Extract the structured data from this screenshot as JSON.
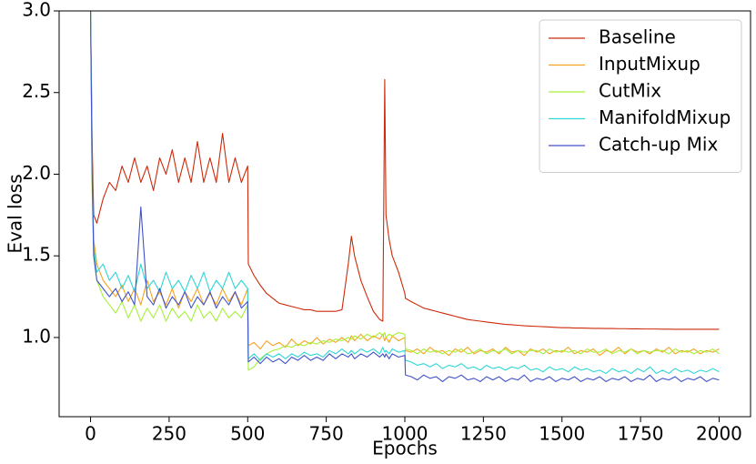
{
  "chart_data": {
    "type": "line",
    "x_label": "Epochs",
    "y_label": "Eval loss",
    "xlim": [
      -100,
      2100
    ],
    "ylim": [
      0.515,
      3.0
    ],
    "xticks": [
      0,
      250,
      500,
      750,
      1000,
      1250,
      1500,
      1750,
      2000
    ],
    "yticks": [
      {
        "value": 1,
        "label": "1.0"
      },
      1.5,
      {
        "value": 2,
        "label": "2.0"
      },
      2.5,
      {
        "value": 3,
        "label": "3.0"
      }
    ],
    "legend": "upper right",
    "x": [
      0,
      5,
      10,
      20,
      40,
      60,
      80,
      100,
      120,
      140,
      160,
      180,
      200,
      220,
      240,
      260,
      280,
      300,
      320,
      340,
      360,
      380,
      400,
      420,
      440,
      460,
      480,
      500,
      502,
      520,
      540,
      560,
      580,
      600,
      620,
      640,
      660,
      680,
      700,
      720,
      740,
      760,
      780,
      800,
      820,
      830,
      840,
      860,
      880,
      900,
      920,
      930,
      936,
      940,
      950,
      960,
      980,
      1000,
      1002,
      1020,
      1040,
      1060,
      1080,
      1100,
      1120,
      1140,
      1160,
      1180,
      1200,
      1220,
      1240,
      1260,
      1280,
      1300,
      1320,
      1340,
      1360,
      1380,
      1400,
      1420,
      1440,
      1460,
      1480,
      1500,
      1520,
      1540,
      1560,
      1580,
      1600,
      1620,
      1640,
      1660,
      1680,
      1700,
      1720,
      1740,
      1760,
      1780,
      1800,
      1820,
      1840,
      1860,
      1880,
      1900,
      1920,
      1940,
      1960,
      1980,
      2000
    ],
    "series": [
      {
        "name": "Baseline",
        "color": "#cc2a0a",
        "values": [
          3.0,
          2.2,
          1.75,
          1.7,
          1.85,
          1.95,
          1.9,
          2.05,
          1.95,
          2.1,
          1.95,
          2.05,
          1.9,
          2.1,
          2.0,
          2.15,
          1.95,
          2.1,
          1.95,
          2.2,
          1.95,
          2.1,
          1.95,
          2.25,
          1.95,
          2.1,
          1.95,
          2.05,
          1.45,
          1.38,
          1.32,
          1.27,
          1.24,
          1.21,
          1.2,
          1.19,
          1.18,
          1.17,
          1.17,
          1.16,
          1.16,
          1.16,
          1.16,
          1.17,
          1.45,
          1.62,
          1.5,
          1.35,
          1.25,
          1.16,
          1.11,
          1.1,
          2.58,
          1.75,
          1.6,
          1.5,
          1.4,
          1.27,
          1.24,
          1.22,
          1.2,
          1.18,
          1.17,
          1.16,
          1.15,
          1.14,
          1.13,
          1.12,
          1.11,
          1.105,
          1.1,
          1.095,
          1.09,
          1.085,
          1.08,
          1.078,
          1.075,
          1.072,
          1.07,
          1.068,
          1.066,
          1.064,
          1.062,
          1.06,
          1.06,
          1.058,
          1.058,
          1.057,
          1.056,
          1.056,
          1.055,
          1.055,
          1.054,
          1.054,
          1.053,
          1.053,
          1.052,
          1.052,
          1.052,
          1.051,
          1.051,
          1.05,
          1.05,
          1.05,
          1.05,
          1.05,
          1.05,
          1.05,
          1.05
        ]
      },
      {
        "name": "InputMixup",
        "color": "#f5a31f",
        "values": [
          3.0,
          2.0,
          1.6,
          1.45,
          1.35,
          1.3,
          1.25,
          1.32,
          1.22,
          1.3,
          1.2,
          1.35,
          1.22,
          1.28,
          1.2,
          1.3,
          1.18,
          1.28,
          1.22,
          1.3,
          1.2,
          1.27,
          1.2,
          1.3,
          1.22,
          1.28,
          1.2,
          1.3,
          0.95,
          0.97,
          0.93,
          0.98,
          0.95,
          0.97,
          0.94,
          0.99,
          0.95,
          0.98,
          0.96,
          1.0,
          0.96,
          0.99,
          0.97,
          1.0,
          0.97,
          1.01,
          0.98,
          1.02,
          0.98,
          1.01,
          0.99,
          1.02,
          0.98,
          1.0,
          0.97,
          1.01,
          0.98,
          1.0,
          0.92,
          0.91,
          0.93,
          0.9,
          0.94,
          0.91,
          0.92,
          0.89,
          0.93,
          0.91,
          0.94,
          0.9,
          0.92,
          0.91,
          0.93,
          0.9,
          0.94,
          0.91,
          0.92,
          0.89,
          0.93,
          0.91,
          0.93,
          0.9,
          0.92,
          0.91,
          0.94,
          0.9,
          0.92,
          0.91,
          0.93,
          0.89,
          0.92,
          0.91,
          0.94,
          0.9,
          0.93,
          0.91,
          0.92,
          0.9,
          0.93,
          0.91,
          0.94,
          0.9,
          0.92,
          0.91,
          0.93,
          0.9,
          0.92,
          0.91,
          0.93
        ]
      },
      {
        "name": "CutMix",
        "color": "#a6f03a",
        "values": [
          3.0,
          1.9,
          1.5,
          1.35,
          1.25,
          1.2,
          1.15,
          1.22,
          1.12,
          1.2,
          1.1,
          1.18,
          1.12,
          1.2,
          1.1,
          1.18,
          1.12,
          1.16,
          1.1,
          1.2,
          1.12,
          1.16,
          1.1,
          1.18,
          1.12,
          1.16,
          1.12,
          1.2,
          0.8,
          0.82,
          0.87,
          0.9,
          0.92,
          0.93,
          0.95,
          0.94,
          0.96,
          0.95,
          0.97,
          0.96,
          0.98,
          0.97,
          0.99,
          0.98,
          1.0,
          0.99,
          1.01,
          0.99,
          1.02,
          1.0,
          1.03,
          1.01,
          1.03,
          1.0,
          1.02,
          1.01,
          1.03,
          1.02,
          0.93,
          0.92,
          0.9,
          0.93,
          0.91,
          0.92,
          0.9,
          0.92,
          0.91,
          0.93,
          0.9,
          0.91,
          0.93,
          0.9,
          0.92,
          0.91,
          0.93,
          0.9,
          0.92,
          0.91,
          0.92,
          0.92,
          0.9,
          0.93,
          0.91,
          0.92,
          0.91,
          0.92,
          0.9,
          0.93,
          0.91,
          0.91,
          0.93,
          0.9,
          0.92,
          0.91,
          0.93,
          0.9,
          0.92,
          0.91,
          0.92,
          0.92,
          0.9,
          0.93,
          0.91,
          0.92,
          0.9,
          0.92,
          0.91,
          0.93,
          0.9
        ]
      },
      {
        "name": "ManifoldMixup",
        "color": "#2ed6d6",
        "values": [
          3.0,
          2.1,
          1.55,
          1.4,
          1.45,
          1.35,
          1.4,
          1.3,
          1.38,
          1.28,
          1.45,
          1.3,
          1.35,
          1.28,
          1.4,
          1.3,
          1.35,
          1.28,
          1.38,
          1.3,
          1.4,
          1.28,
          1.35,
          1.3,
          1.4,
          1.3,
          1.35,
          1.3,
          0.87,
          0.9,
          0.86,
          0.9,
          0.88,
          0.9,
          0.87,
          0.9,
          0.88,
          0.91,
          0.89,
          0.9,
          0.88,
          0.92,
          0.9,
          0.93,
          0.9,
          0.92,
          0.9,
          0.93,
          0.91,
          0.93,
          0.9,
          0.94,
          0.91,
          0.92,
          0.9,
          0.93,
          0.91,
          0.92,
          0.86,
          0.85,
          0.83,
          0.84,
          0.82,
          0.84,
          0.81,
          0.83,
          0.82,
          0.84,
          0.81,
          0.82,
          0.8,
          0.83,
          0.81,
          0.82,
          0.8,
          0.82,
          0.81,
          0.83,
          0.8,
          0.81,
          0.79,
          0.82,
          0.8,
          0.81,
          0.79,
          0.82,
          0.8,
          0.81,
          0.79,
          0.8,
          0.78,
          0.81,
          0.79,
          0.8,
          0.78,
          0.81,
          0.79,
          0.82,
          0.78,
          0.8,
          0.78,
          0.81,
          0.79,
          0.8,
          0.78,
          0.8,
          0.79,
          0.81,
          0.79
        ]
      },
      {
        "name": "Catch-up Mix",
        "color": "#4152c8",
        "values": [
          3.0,
          2.0,
          1.5,
          1.35,
          1.3,
          1.25,
          1.3,
          1.22,
          1.28,
          1.2,
          1.8,
          1.25,
          1.2,
          1.3,
          1.18,
          1.25,
          1.2,
          1.28,
          1.18,
          1.25,
          1.2,
          1.28,
          1.18,
          1.25,
          1.2,
          1.28,
          1.18,
          1.22,
          0.85,
          0.88,
          0.84,
          0.88,
          0.85,
          0.87,
          0.84,
          0.88,
          0.86,
          0.89,
          0.86,
          0.88,
          0.86,
          0.9,
          0.87,
          0.9,
          0.88,
          0.9,
          0.87,
          0.9,
          0.88,
          0.91,
          0.88,
          0.9,
          0.88,
          0.9,
          0.87,
          0.9,
          0.88,
          0.89,
          0.77,
          0.76,
          0.74,
          0.77,
          0.75,
          0.76,
          0.73,
          0.76,
          0.75,
          0.77,
          0.74,
          0.75,
          0.73,
          0.76,
          0.74,
          0.76,
          0.73,
          0.75,
          0.74,
          0.77,
          0.73,
          0.75,
          0.74,
          0.76,
          0.73,
          0.75,
          0.74,
          0.76,
          0.73,
          0.75,
          0.74,
          0.76,
          0.73,
          0.75,
          0.74,
          0.76,
          0.73,
          0.75,
          0.74,
          0.77,
          0.73,
          0.75,
          0.74,
          0.76,
          0.73,
          0.75,
          0.74,
          0.76,
          0.73,
          0.75,
          0.74
        ]
      }
    ]
  }
}
